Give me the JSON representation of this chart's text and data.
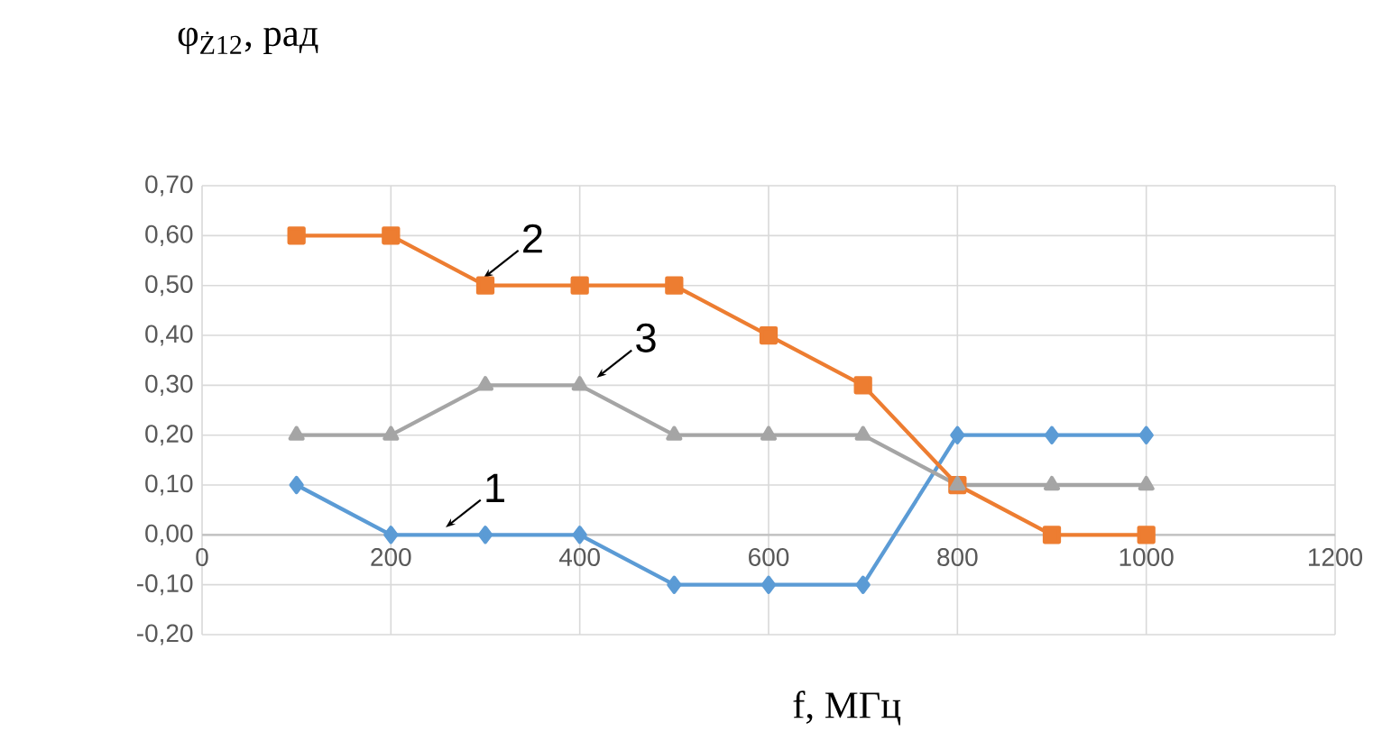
{
  "chart_data": {
    "type": "line",
    "xlabel": "f, МГц",
    "ylabel": "φ$_{Ż12}$, рад",
    "xlim": [
      0,
      1200
    ],
    "xticks": [
      0,
      200,
      400,
      600,
      800,
      1000,
      1200
    ],
    "ylim": [
      -0.2,
      0.7
    ],
    "yticks": [
      {
        "value": -0.2,
        "label": "-0,20"
      },
      {
        "value": -0.1,
        "label": "-0,10"
      },
      {
        "value": 0,
        "label": "0,00"
      },
      {
        "value": 0.1,
        "label": "0,10"
      },
      {
        "value": 0.2,
        "label": "0,20"
      },
      {
        "value": 0.3,
        "label": "0,30"
      },
      {
        "value": 0.4,
        "label": "0,40"
      },
      {
        "value": 0.5,
        "label": "0,50"
      },
      {
        "value": 0.6,
        "label": "0,60"
      },
      {
        "value": 0.7,
        "label": "0,70"
      }
    ],
    "x": [
      100,
      200,
      300,
      400,
      500,
      600,
      700,
      800,
      900,
      1000
    ],
    "series": [
      {
        "color": "#5b9bd5",
        "marker": "diamond",
        "values": [
          0.1,
          0,
          0,
          0,
          -0.1,
          -0.1,
          -0.1,
          0.2,
          0.2,
          0.2
        ]
      },
      {
        "color": "#ed7d31",
        "marker": "square",
        "values": [
          0.6,
          0.6,
          0.5,
          0.5,
          0.5,
          0.4,
          0.3,
          0.1,
          0,
          0
        ]
      },
      {
        "color": "#a5a5a5",
        "marker": "triangle",
        "values": [
          0.2,
          0.2,
          0.3,
          0.3,
          0.2,
          0.2,
          0.2,
          0.1,
          0.1,
          0.1
        ]
      }
    ],
    "annotations": [
      {
        "text": "1",
        "x": 250,
        "y": 0
      },
      {
        "text": "2",
        "x": 290,
        "y": 0.5
      },
      {
        "text": "3",
        "x": 410,
        "y": 0.3
      }
    ],
    "grid": true,
    "line_style": "solid"
  }
}
